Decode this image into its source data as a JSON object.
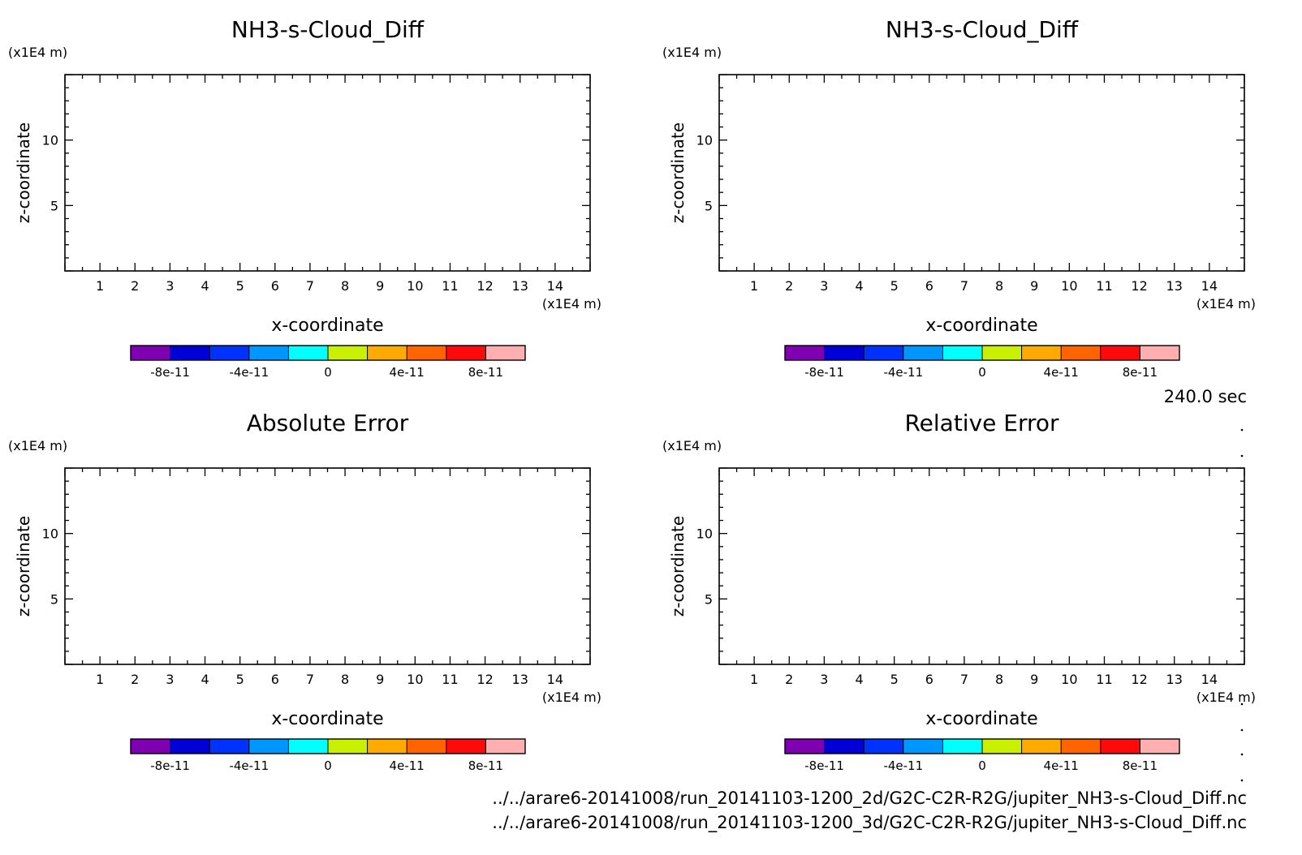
{
  "figure": {
    "time_label": "240.0 sec",
    "file_paths": [
      "../../arare6-20141008/run_20141103-1200_2d/G2C-C2R-R2G/jupiter_NH3-s-Cloud_Diff.nc",
      "../../arare6-20141008/run_20141103-1200_3d/G2C-C2R-R2G/jupiter_NH3-s-Cloud_Diff.nc"
    ]
  },
  "colorbar": {
    "colors": [
      "#7f00b2",
      "#0000d7",
      "#0032ff",
      "#0096ff",
      "#00ffff",
      "#c8f000",
      "#ffaa00",
      "#ff6400",
      "#ff0a0a",
      "#ffafaf"
    ],
    "tick_labels": [
      "-8e-11",
      "-4e-11",
      "0",
      "4e-11",
      "8e-11"
    ]
  },
  "chart_data": [
    {
      "type": "heatmap",
      "title": "NH3-s-Cloud_Diff",
      "xlabel": "x-coordinate",
      "ylabel": "z-coordinate",
      "x_unit": "(x1E4 m)",
      "y_unit": "(x1E4 m)",
      "xlim": [
        0,
        15
      ],
      "ylim": [
        0,
        15
      ],
      "x_ticks": [
        "1",
        "2",
        "3",
        "4",
        "5",
        "6",
        "7",
        "8",
        "9",
        "10",
        "11",
        "12",
        "13",
        "14"
      ],
      "y_ticks": [
        "5",
        "10"
      ],
      "values": []
    },
    {
      "type": "heatmap",
      "title": "NH3-s-Cloud_Diff",
      "xlabel": "x-coordinate",
      "ylabel": "z-coordinate",
      "x_unit": "(x1E4 m)",
      "y_unit": "(x1E4 m)",
      "xlim": [
        0,
        15
      ],
      "ylim": [
        0,
        15
      ],
      "x_ticks": [
        "1",
        "2",
        "3",
        "4",
        "5",
        "6",
        "7",
        "8",
        "9",
        "10",
        "11",
        "12",
        "13",
        "14"
      ],
      "y_ticks": [
        "5",
        "10"
      ],
      "values": []
    },
    {
      "type": "heatmap",
      "title": "Absolute Error",
      "xlabel": "x-coordinate",
      "ylabel": "z-coordinate",
      "x_unit": "(x1E4 m)",
      "y_unit": "(x1E4 m)",
      "xlim": [
        0,
        15
      ],
      "ylim": [
        0,
        15
      ],
      "x_ticks": [
        "1",
        "2",
        "3",
        "4",
        "5",
        "6",
        "7",
        "8",
        "9",
        "10",
        "11",
        "12",
        "13",
        "14"
      ],
      "y_ticks": [
        "5",
        "10"
      ],
      "values": []
    },
    {
      "type": "heatmap",
      "title": "Relative Error",
      "xlabel": "x-coordinate",
      "ylabel": "z-coordinate",
      "x_unit": "(x1E4 m)",
      "y_unit": "(x1E4 m)",
      "xlim": [
        0,
        15
      ],
      "ylim": [
        0,
        15
      ],
      "x_ticks": [
        "1",
        "2",
        "3",
        "4",
        "5",
        "6",
        "7",
        "8",
        "9",
        "10",
        "11",
        "12",
        "13",
        "14"
      ],
      "y_ticks": [
        "5",
        "10"
      ],
      "values": []
    }
  ]
}
